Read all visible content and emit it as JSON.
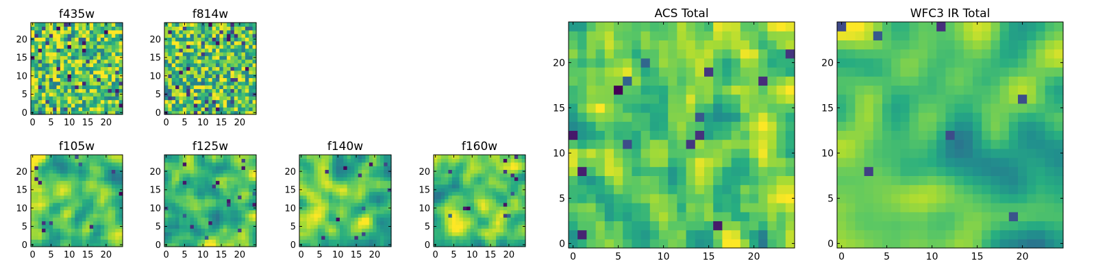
{
  "chart_data": [
    {
      "type": "heatmap",
      "title": "f435w",
      "x_ticks": [
        "0",
        "5",
        "10",
        "15",
        "20"
      ],
      "y_ticks": [
        "0",
        "5",
        "10",
        "15",
        "20"
      ],
      "xlim": [
        -0.5,
        24.5
      ],
      "ylim": [
        -0.5,
        24.5
      ],
      "grid": false,
      "legend": "none",
      "colormap": "viridis",
      "smoothness": 0,
      "seed": 11,
      "bias": 0.35,
      "speckle": 0.07
    },
    {
      "type": "heatmap",
      "title": "f814w",
      "x_ticks": [
        "0",
        "5",
        "10",
        "15",
        "20"
      ],
      "y_ticks": [
        "0",
        "5",
        "10",
        "15",
        "20"
      ],
      "xlim": [
        -0.5,
        24.5
      ],
      "ylim": [
        -0.5,
        24.5
      ],
      "grid": false,
      "legend": "none",
      "colormap": "viridis",
      "smoothness": 0,
      "seed": 23,
      "bias": 0.3,
      "speckle": 0.07
    },
    {
      "type": "heatmap",
      "title": "f105w",
      "x_ticks": [
        "0",
        "5",
        "10",
        "15",
        "20"
      ],
      "y_ticks": [
        "0",
        "5",
        "10",
        "15",
        "20"
      ],
      "xlim": [
        -0.5,
        24.5
      ],
      "ylim": [
        -0.5,
        24.5
      ],
      "grid": false,
      "legend": "none",
      "colormap": "viridis",
      "smoothness": 2,
      "seed": 37,
      "bias": 0.25,
      "speckle": 0.02
    },
    {
      "type": "heatmap",
      "title": "f125w",
      "x_ticks": [
        "0",
        "5",
        "10",
        "15",
        "20"
      ],
      "y_ticks": [
        "0",
        "5",
        "10",
        "15",
        "20"
      ],
      "xlim": [
        -0.5,
        24.5
      ],
      "ylim": [
        -0.5,
        24.5
      ],
      "grid": false,
      "legend": "none",
      "colormap": "viridis",
      "smoothness": 2,
      "seed": 41,
      "bias": 0.25,
      "speckle": 0.02
    },
    {
      "type": "heatmap",
      "title": "f140w",
      "x_ticks": [
        "0",
        "5",
        "10",
        "15",
        "20"
      ],
      "y_ticks": [
        "0",
        "5",
        "10",
        "15",
        "20"
      ],
      "xlim": [
        -0.5,
        24.5
      ],
      "ylim": [
        -0.5,
        24.5
      ],
      "grid": false,
      "legend": "none",
      "colormap": "viridis",
      "smoothness": 2,
      "seed": 53,
      "bias": 0.25,
      "speckle": 0.02
    },
    {
      "type": "heatmap",
      "title": "f160w",
      "x_ticks": [
        "0",
        "5",
        "10",
        "15",
        "20"
      ],
      "y_ticks": [
        "0",
        "5",
        "10",
        "15",
        "20"
      ],
      "xlim": [
        -0.5,
        24.5
      ],
      "ylim": [
        -0.5,
        24.5
      ],
      "grid": false,
      "legend": "none",
      "colormap": "viridis",
      "smoothness": 2,
      "seed": 67,
      "bias": 0.25,
      "speckle": 0.02
    },
    {
      "type": "heatmap",
      "title": "ACS Total",
      "x_ticks": [
        "0",
        "5",
        "10",
        "15",
        "20"
      ],
      "y_ticks": [
        "0",
        "5",
        "10",
        "15",
        "20"
      ],
      "xlim": [
        -0.5,
        24.5
      ],
      "ylim": [
        -0.5,
        24.5
      ],
      "grid": false,
      "legend": "none",
      "colormap": "viridis",
      "smoothness": 1,
      "seed": 79,
      "bias": 0.3,
      "speckle": 0.03
    },
    {
      "type": "heatmap",
      "title": "WFC3 IR Total",
      "x_ticks": [
        "0",
        "5",
        "10",
        "15",
        "20"
      ],
      "y_ticks": [
        "0",
        "5",
        "10",
        "15",
        "20"
      ],
      "xlim": [
        -0.5,
        24.5
      ],
      "ylim": [
        -0.5,
        24.5
      ],
      "grid": false,
      "legend": "none",
      "colormap": "viridis",
      "smoothness": 3,
      "seed": 83,
      "bias": 0.25,
      "speckle": 0.015
    }
  ]
}
